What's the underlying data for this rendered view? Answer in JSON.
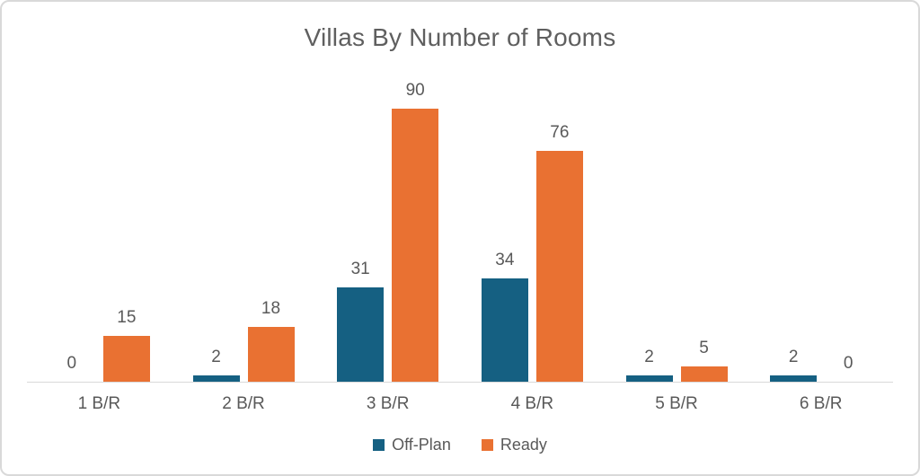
{
  "chart_data": {
    "type": "bar",
    "title": "Villas By Number of Rooms",
    "categories": [
      "1 B/R",
      "2 B/R",
      "3 B/R",
      "4 B/R",
      "5 B/R",
      "6 B/R"
    ],
    "series": [
      {
        "name": "Off-Plan",
        "color": "#156082",
        "values": [
          0,
          2,
          31,
          34,
          2,
          2
        ]
      },
      {
        "name": "Ready",
        "color": "#E97132",
        "values": [
          15,
          18,
          90,
          76,
          5,
          0
        ]
      }
    ],
    "ylim": [
      0,
      90
    ],
    "grid": false,
    "legend_position": "bottom",
    "value_labels": "outside-end",
    "xlabel": "",
    "ylabel": ""
  },
  "colors": {
    "axis_line": "#D9D9D9",
    "text": "#595959",
    "title_text": "#5F5F5F",
    "background": "#FFFFFF",
    "border": "#D9D9D9"
  }
}
